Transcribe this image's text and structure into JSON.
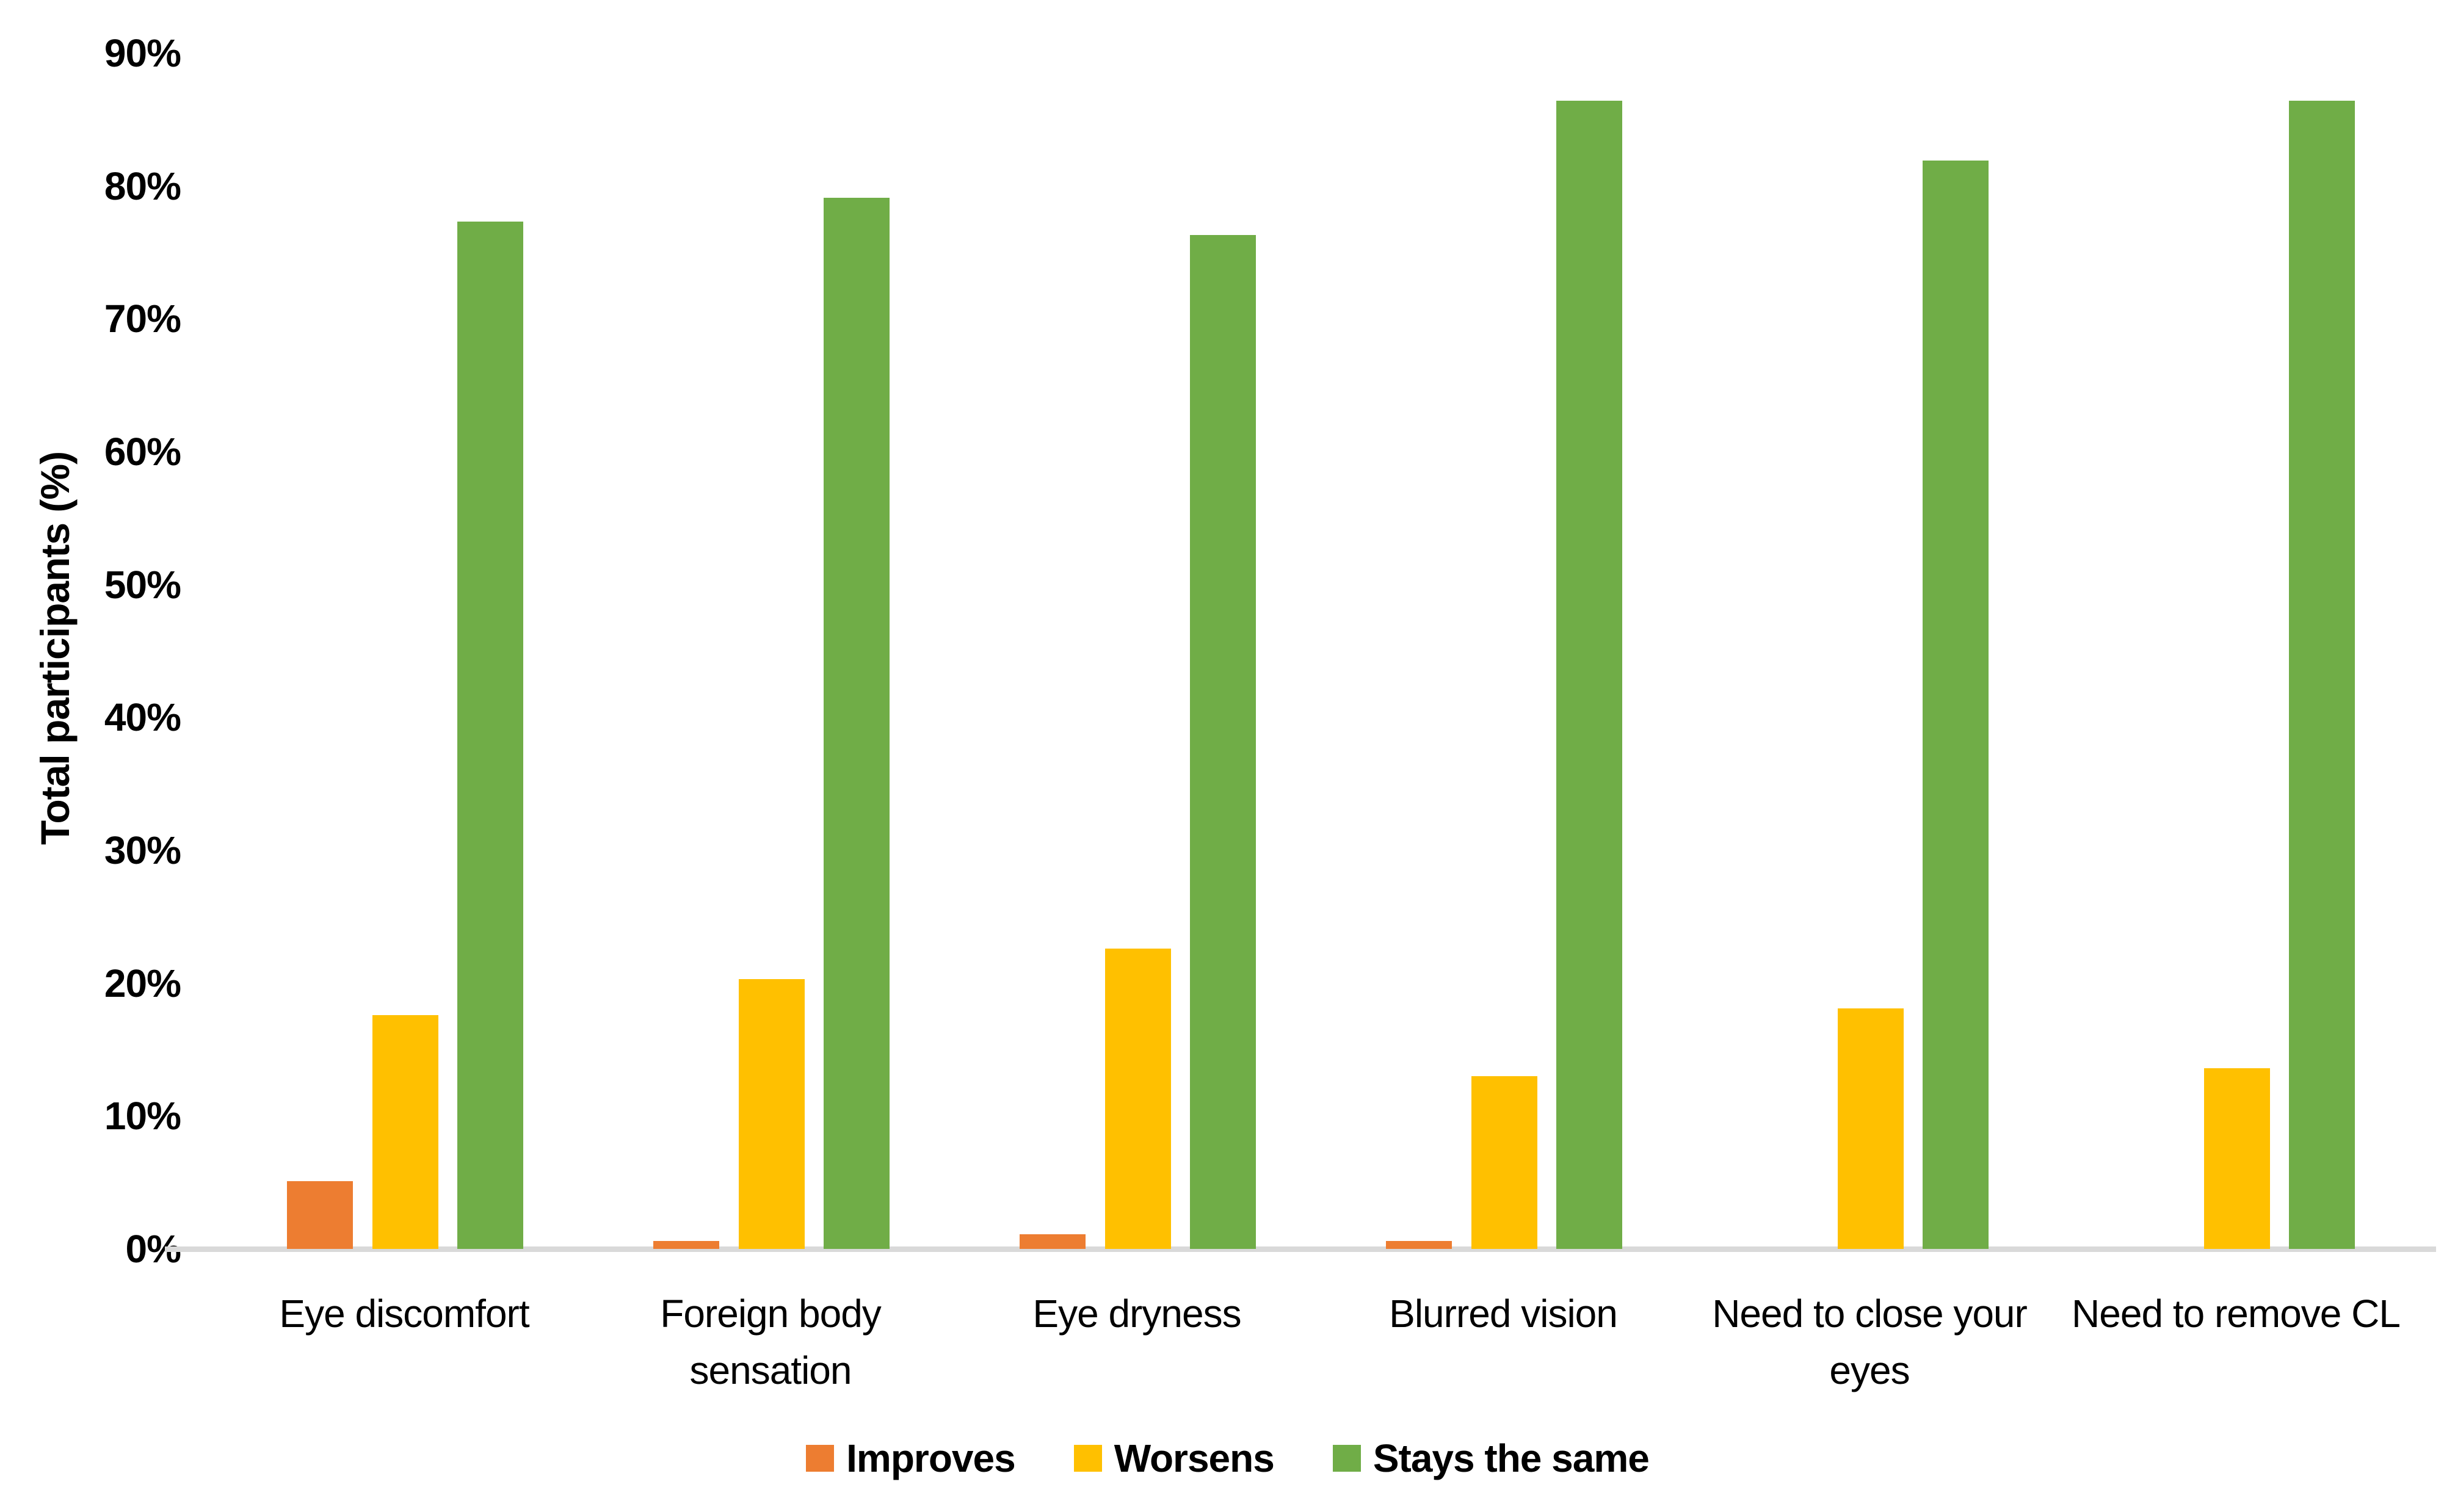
{
  "chart_data": {
    "type": "bar",
    "title": "",
    "xlabel": "",
    "ylabel": "Total participants (%)",
    "ylim": [
      0,
      90
    ],
    "ytick_step": 10,
    "ytick_labels": [
      "0%",
      "10%",
      "20%",
      "30%",
      "40%",
      "50%",
      "60%",
      "70%",
      "80%",
      "90%"
    ],
    "grid": false,
    "legend_position": "bottom",
    "axis_line_color": "#d9d9d9",
    "text_color": "#000000",
    "background_color": "#ffffff",
    "categories": [
      "Eye discomfort",
      "Foreign body sensation",
      "Eye dryness",
      "Blurred vision",
      "Need to close your eyes",
      "Need to remove CL"
    ],
    "series": [
      {
        "name": "Improves",
        "color": "#ED7D31",
        "values": [
          5.1,
          0.6,
          1.1,
          0.6,
          0,
          0
        ]
      },
      {
        "name": "Worsens",
        "color": "#FFC000",
        "values": [
          17.6,
          20.3,
          22.6,
          13.0,
          18.1,
          13.6
        ]
      },
      {
        "name": "Stays the same",
        "color": "#70AD47",
        "values": [
          77.3,
          79.1,
          76.3,
          86.4,
          81.9,
          86.4
        ]
      }
    ]
  }
}
